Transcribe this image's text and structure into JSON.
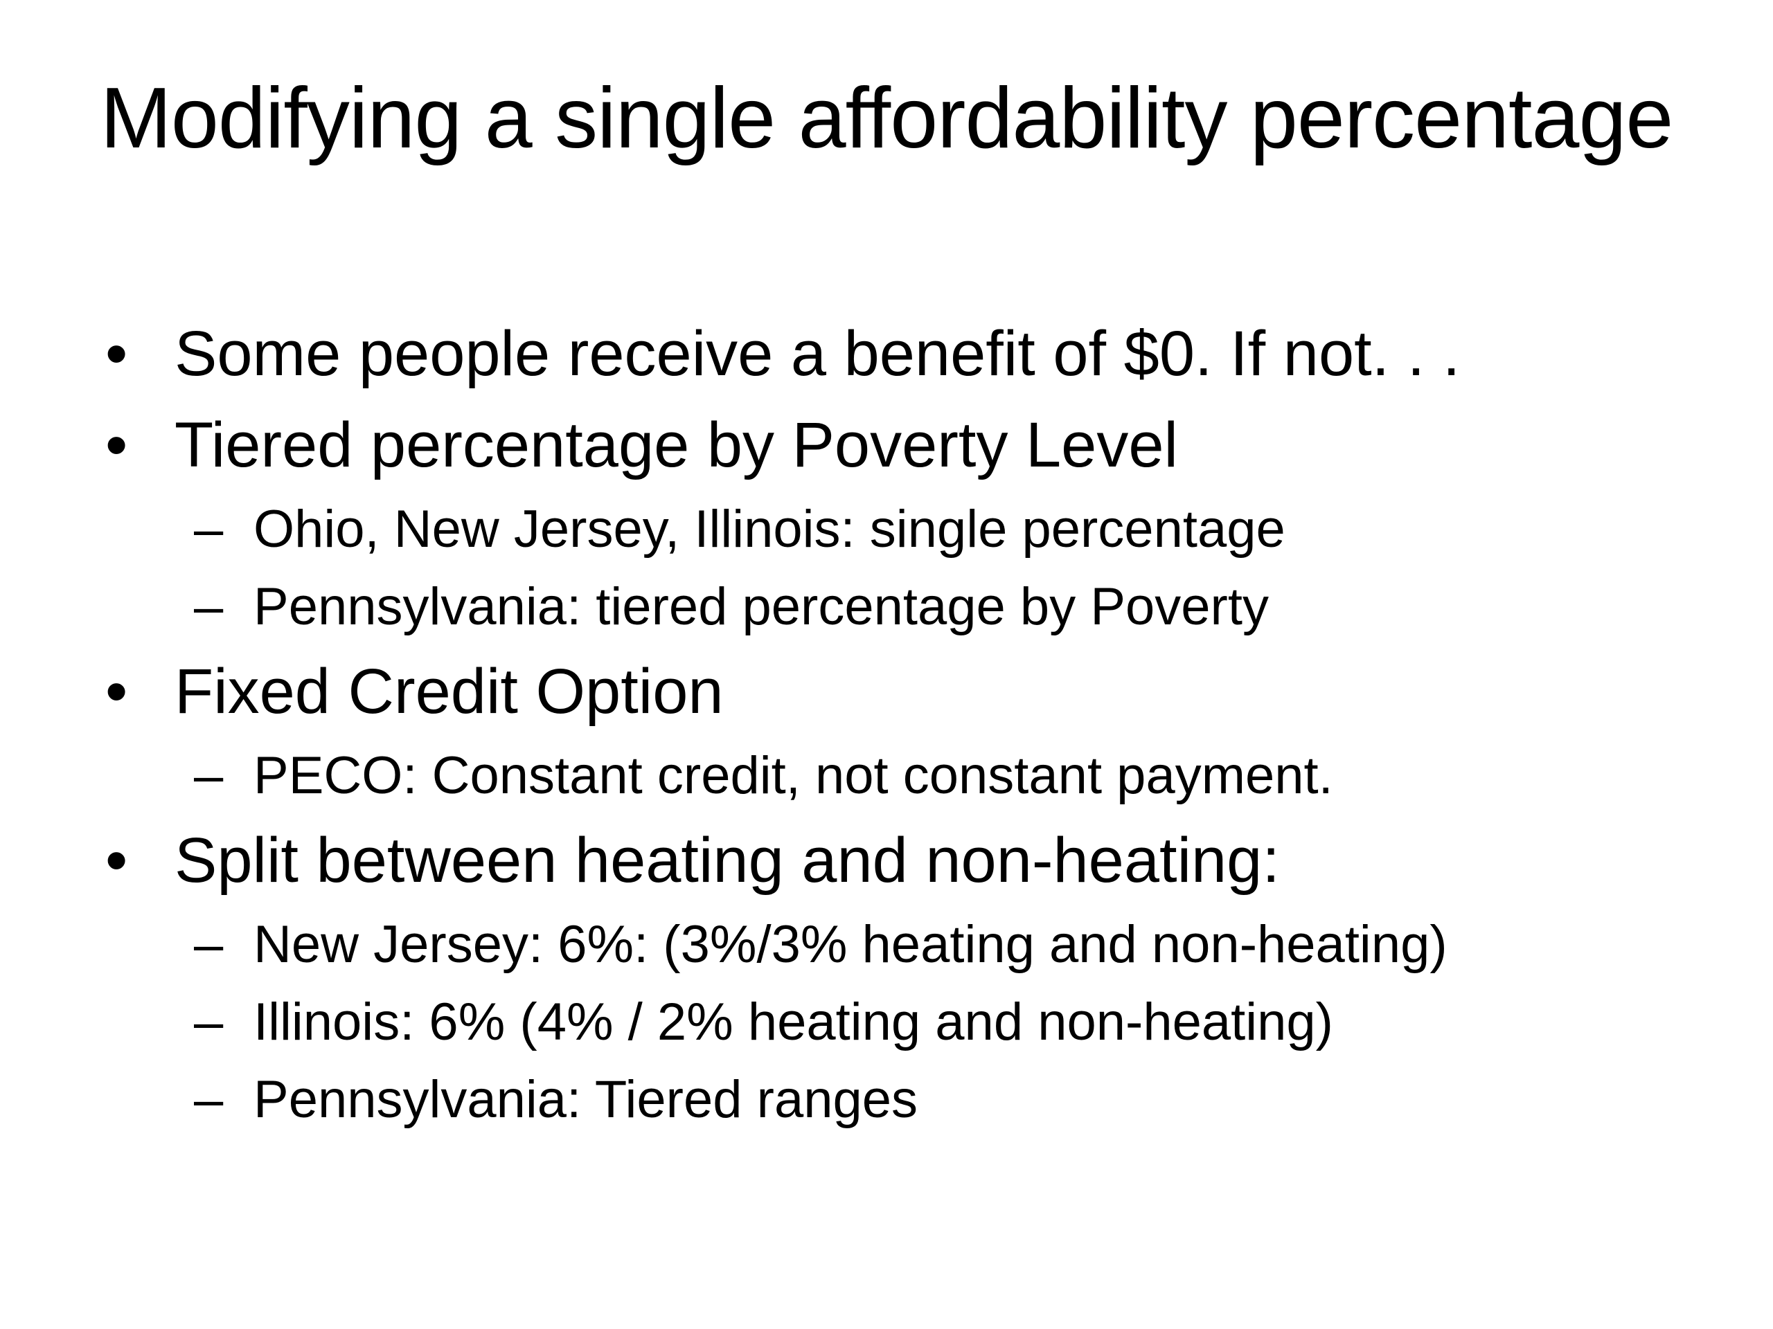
{
  "slide": {
    "title": "Modifying a single affordability percentage",
    "items": [
      {
        "level": 1,
        "marker": "•",
        "text": "Some people receive a benefit of $0. If not. . ."
      },
      {
        "level": 1,
        "marker": "•",
        "text": "Tiered percentage by Poverty Level"
      },
      {
        "level": 2,
        "marker": "–",
        "text": "Ohio, New Jersey, Illinois: single percentage"
      },
      {
        "level": 2,
        "marker": "–",
        "text": "Pennsylvania: tiered percentage by Poverty"
      },
      {
        "level": 1,
        "marker": "•",
        "text": "Fixed Credit Option"
      },
      {
        "level": 2,
        "marker": "–",
        "text": "PECO: Constant credit, not constant payment."
      },
      {
        "level": 1,
        "marker": "•",
        "text": "Split between heating and non-heating:"
      },
      {
        "level": 2,
        "marker": "–",
        "text": "New Jersey: 6%: (3%/3% heating and non-heating)"
      },
      {
        "level": 2,
        "marker": "–",
        "text": "Illinois: 6% (4% / 2% heating and non-heating)"
      },
      {
        "level": 2,
        "marker": "–",
        "text": "Pennsylvania: Tiered ranges"
      }
    ]
  }
}
